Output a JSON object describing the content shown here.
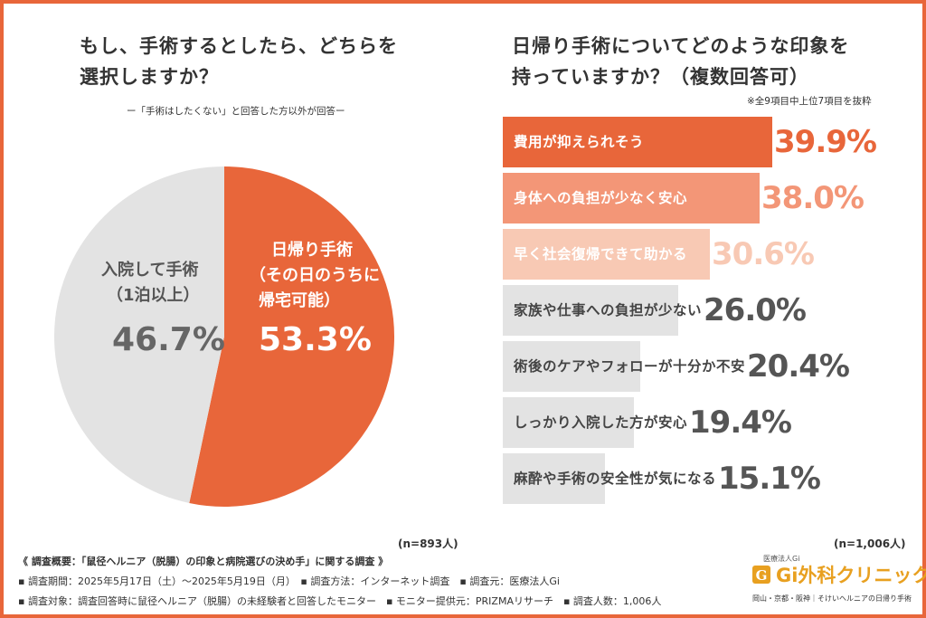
{
  "left_chart": {
    "title_line1": "もし、手術するとしたら、どちらを",
    "title_line2": "選択しますか？",
    "subtitle": "ー「手術はしたくない」と回答した方以外が回答ー",
    "n": "(n=893人)"
  },
  "right_chart": {
    "title_line1": "日帰り手術についてどのような印象を",
    "title_line2": "持っていますか？（複数回答可）",
    "note": "※全9項目中上位7項目を抜粋",
    "n": "(n=1,006人)"
  },
  "chart_data": [
    {
      "type": "pie",
      "slices": [
        {
          "label_lines": [
            "日帰り手術",
            "（その日のうちに",
            "帰宅可能）"
          ],
          "value": 53.3,
          "display": "53.3%",
          "color": "#e8663a"
        },
        {
          "label_lines": [
            "入院して手術",
            "（1泊以上）"
          ],
          "value": 46.7,
          "display": "46.7%",
          "color": "#e3e3e3"
        }
      ]
    },
    {
      "type": "bar",
      "orientation": "horizontal",
      "max_value": 39.9,
      "categories": [
        "費用が抑えられそう",
        "身体への負担が少なく安心",
        "早く社会復帰できて助かる",
        "家族や仕事への負担が少ない",
        "術後のケアやフォローが十分か不安",
        "しっかり入院した方が安心",
        "麻酔や手術の安全性が気になる"
      ],
      "values": [
        39.9,
        38.0,
        30.6,
        26.0,
        20.4,
        19.4,
        15.1
      ],
      "display_values": [
        "39.9%",
        "38.0%",
        "30.6%",
        "26.0%",
        "20.4%",
        "19.4%",
        "15.1%"
      ],
      "bar_colors": [
        "#e8663a",
        "#f39677",
        "#f8c9b4",
        "#e3e3e3",
        "#e3e3e3",
        "#e3e3e3",
        "#e3e3e3"
      ],
      "text_colors": [
        "#ffffff",
        "#ffffff",
        "#ffffff",
        "#444444",
        "#444444",
        "#444444",
        "#444444"
      ],
      "value_colors": [
        "#e8663a",
        "#f39677",
        "#f8c9b4",
        "#555555",
        "#555555",
        "#555555",
        "#555555"
      ]
    }
  ],
  "footer": {
    "line1": "《 調査概要：「鼠径ヘルニア（脱腸）の印象と病院選びの決め手」に関する調査 》",
    "line2": "▪ 調査期間：2025年5月17日（土）～2025年5月19日（月）　▪ 調査方法：インターネット調査　▪ 調査元：医療法人Gi",
    "line3": "▪ 調査対象：調査回答時に鼠径ヘルニア（脱腸）の未経験者と回答したモニター　▪ モニター提供元：PRIZMAリサーチ　▪ 調査人数：1,006人"
  },
  "logo": {
    "org": "医療法人Gi",
    "name": "Gi外科クリニック",
    "tagline": "岡山・京都・阪神｜そけいヘルニアの日帰り手術",
    "color": "#e8a020"
  }
}
